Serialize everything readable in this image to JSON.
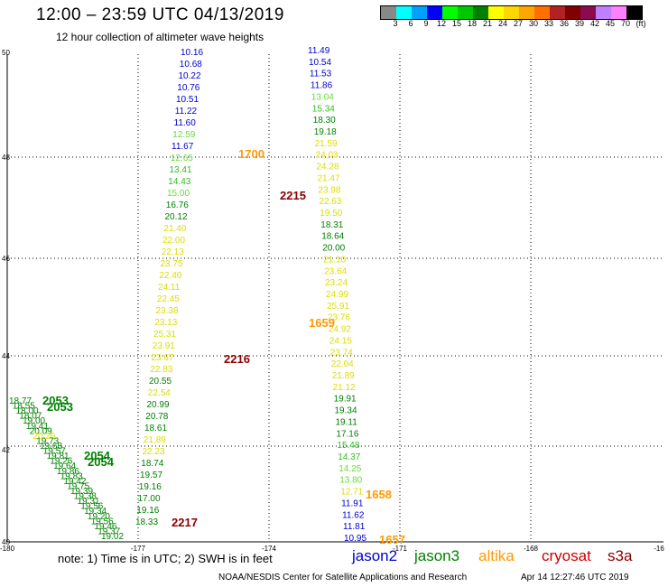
{
  "header": {
    "title": "12:00 – 23:59 UTC 04/13/2019",
    "subtitle": "12 hour collection of altimeter wave heights"
  },
  "scale": {
    "colors": [
      "#888888",
      "#00ffff",
      "#00a0ff",
      "#0000ff",
      "#00ff00",
      "#00c800",
      "#008000",
      "#ffff00",
      "#ffd700",
      "#ffa500",
      "#ff7000",
      "#b22222",
      "#800000",
      "#8b0a50",
      "#bf7fff",
      "#ff80ff",
      "#000000"
    ],
    "labels": [
      "3",
      "6",
      "9",
      "12",
      "15",
      "18",
      "21",
      "24",
      "27",
      "30",
      "33",
      "36",
      "39",
      "42",
      "45",
      "70",
      "(ft)"
    ]
  },
  "axes": {
    "y_labels": [
      "50",
      "48",
      "46",
      "44",
      "42",
      "40"
    ],
    "x_labels": [
      "-180",
      "-177",
      "-174",
      "-171",
      "-168",
      "-16"
    ]
  },
  "note": "note:  1) Time is in UTC;  2) SWH is in feet",
  "legend": [
    {
      "name": "jason2",
      "color": "#0000cc"
    },
    {
      "name": "jason3",
      "color": "#008000"
    },
    {
      "name": "altika",
      "color": "#ff9900"
    },
    {
      "name": "cryosat",
      "color": "#cc0000"
    },
    {
      "name": "s3a",
      "color": "#8b0000"
    }
  ],
  "footer": "NOAA/NESDIS Center for Satellite Applications and Research",
  "footer_time": "Apr 14 12:27:46 UTC 2019",
  "tracks": [
    {
      "name": "track-a",
      "values": [
        "10.16",
        "10.68",
        "10.22",
        "10.76",
        "10.51",
        "11.22",
        "11.60",
        "12.59",
        "11.67",
        "12.65",
        "13.41",
        "14.43",
        "15.00",
        "16.76",
        "20.12",
        "21.40",
        "22.00",
        "22.13",
        "23.75",
        "22.40",
        "24.11",
        "22.45",
        "23.38",
        "23.13",
        "25.31",
        "23.91",
        "23.67",
        "22.83",
        "20.55",
        "22.54",
        "20.99",
        "20.78",
        "18.61",
        "21.89",
        "22.23",
        "18.74",
        "19.57",
        "19.16",
        "17.00",
        "19.16",
        "18.33"
      ],
      "colors": [
        "#0000cc",
        "#0000cc",
        "#0000cc",
        "#0000cc",
        "#0000cc",
        "#0000cc",
        "#0000cc",
        "#66dd33",
        "#0000cc",
        "#66dd33",
        "#33bb22",
        "#33bb22",
        "#66dd33",
        "#008000",
        "#008000",
        "#dddd00",
        "#dddd00",
        "#dddd00",
        "#dddd00",
        "#dddd00",
        "#dddd00",
        "#dddd00",
        "#dddd00",
        "#dddd00",
        "#dddd00",
        "#dddd00",
        "#dddd00",
        "#dddd00",
        "#008000",
        "#dddd00",
        "#008000",
        "#008000",
        "#008000",
        "#dddd00",
        "#dddd00",
        "#008000",
        "#008000",
        "#008000",
        "#008000",
        "#008000",
        "#008000"
      ]
    },
    {
      "name": "track-b",
      "values": [
        "11.49",
        "10.54",
        "11.53",
        "11.86",
        "13.04",
        "15.34",
        "18.30",
        "19.18",
        "21.59",
        "24.03",
        "24.28",
        "21.47",
        "23.98",
        "22.63",
        "19.50",
        "18.31",
        "18.64",
        "20.00",
        "21.10",
        "23.64",
        "23.24",
        "24.99",
        "25.91",
        "23.76",
        "24.92",
        "24.15",
        "23.74",
        "22.04",
        "21.89",
        "21.12",
        "19.91",
        "19.34",
        "19.11",
        "17.16",
        "15.48",
        "14.37",
        "14.25",
        "13.80",
        "12.71",
        "11.91",
        "11.62",
        "11.81",
        "10.95"
      ],
      "colors": [
        "#0000cc",
        "#0000cc",
        "#0000cc",
        "#0000cc",
        "#66dd33",
        "#33bb22",
        "#008000",
        "#008000",
        "#dddd00",
        "#dddd00",
        "#dddd00",
        "#dddd00",
        "#dddd00",
        "#dddd00",
        "#dddd00",
        "#008000",
        "#008000",
        "#008000",
        "#dddd00",
        "#dddd00",
        "#dddd00",
        "#dddd00",
        "#dddd00",
        "#dddd00",
        "#dddd00",
        "#dddd00",
        "#dddd00",
        "#dddd00",
        "#dddd00",
        "#dddd00",
        "#008000",
        "#008000",
        "#008000",
        "#008000",
        "#33bb22",
        "#33bb22",
        "#66dd33",
        "#66dd33",
        "#dddd00",
        "#0000cc",
        "#0000cc",
        "#0000cc",
        "#0000cc"
      ]
    },
    {
      "name": "track-c",
      "values": [
        "18.77",
        "18.55",
        "18.00",
        "18.07",
        "19.00",
        "19.41",
        "20.09",
        "20.26",
        "19.73",
        "19.68",
        "19.57",
        "19.81",
        "19.26",
        "19.64",
        "19.86",
        "19.83",
        "19.42",
        "19.75",
        "19.39",
        "19.38",
        "19.31",
        "19.56",
        "19.34",
        "19.20",
        "19.56",
        "19.46",
        "19.37",
        "19.02"
      ],
      "colors": [
        "#008000",
        "#008000",
        "#008000",
        "#008000",
        "#008000",
        "#008000",
        "#008000",
        "#dddd00",
        "#008000",
        "#008000",
        "#008000",
        "#008000",
        "#008000",
        "#008000",
        "#008000",
        "#008000",
        "#008000",
        "#008000",
        "#008000",
        "#008000",
        "#008000",
        "#008000",
        "#008000",
        "#008000",
        "#008000",
        "#008000",
        "#008000",
        "#008000"
      ]
    }
  ],
  "time_labels": [
    {
      "text": "1700",
      "color": "#ff9900"
    },
    {
      "text": "2215",
      "color": "#8b0000"
    },
    {
      "text": "1659",
      "color": "#ff9900"
    },
    {
      "text": "2216",
      "color": "#8b0000"
    },
    {
      "text": "2053",
      "color": "#008000"
    },
    {
      "text": "2053",
      "color": "#008000"
    },
    {
      "text": "2054",
      "color": "#008000"
    },
    {
      "text": "2054",
      "color": "#008000"
    },
    {
      "text": "1658",
      "color": "#ff9900"
    },
    {
      "text": "2217",
      "color": "#8b0000"
    },
    {
      "text": "1657",
      "color": "#ff9900"
    }
  ]
}
